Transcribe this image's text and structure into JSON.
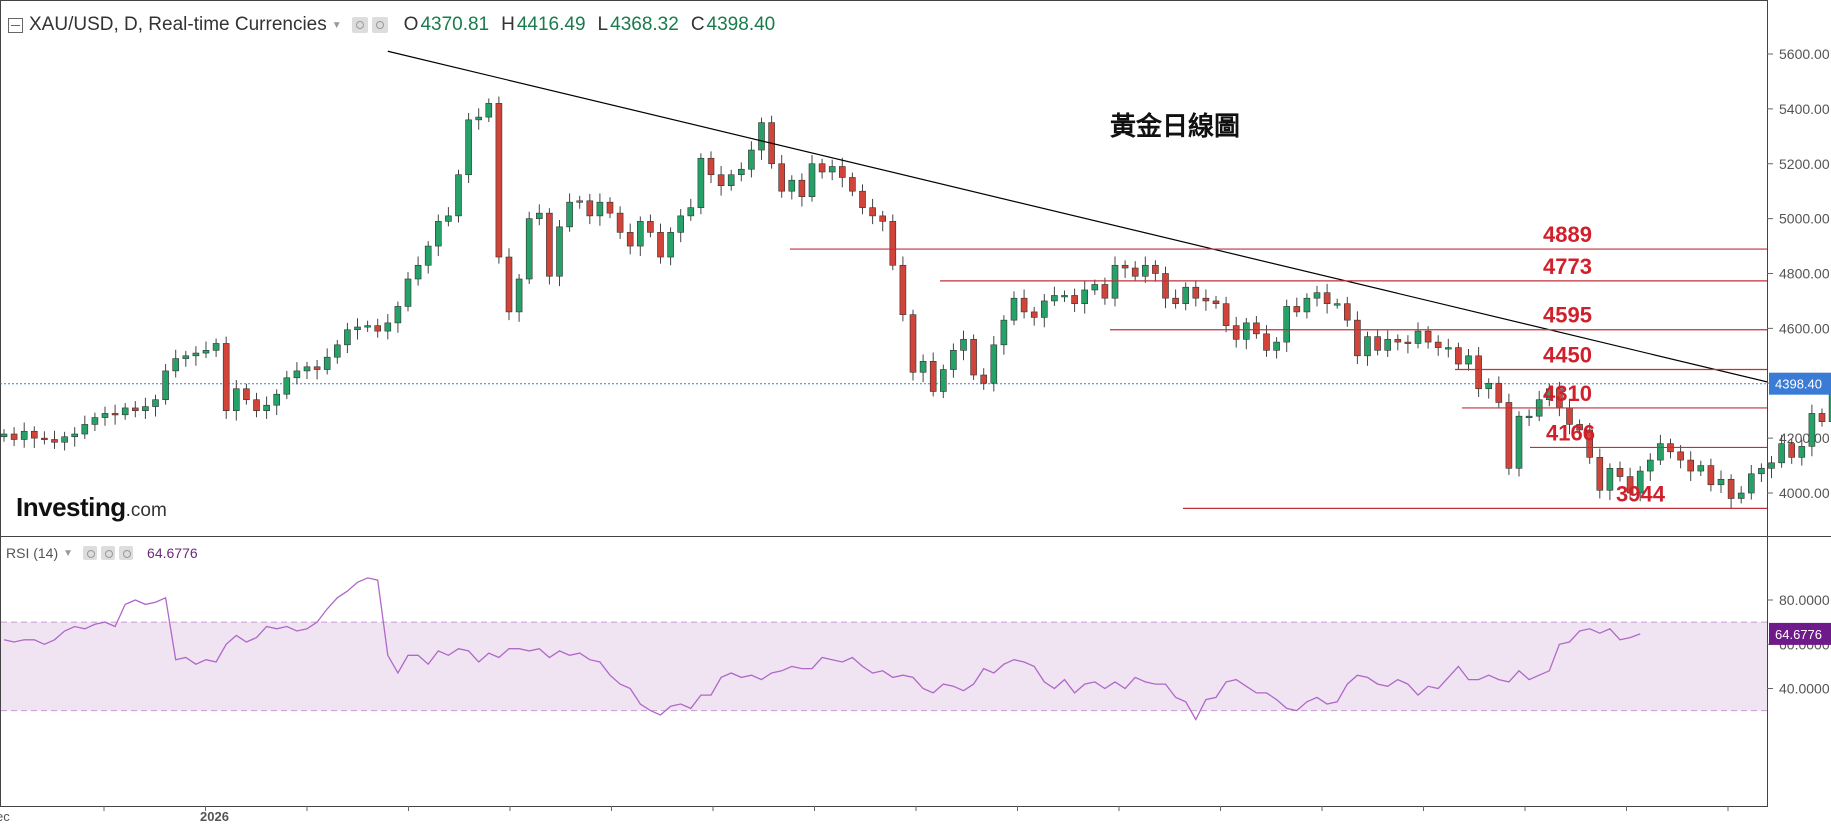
{
  "header": {
    "symbol": "XAU/USD, D, Real-time Currencies",
    "open_label": "O",
    "open": "4370.81",
    "high_label": "H",
    "high": "4416.49",
    "low_label": "L",
    "low": "4368.32",
    "close_label": "C",
    "close": "4398.40"
  },
  "logo": {
    "brand": "Investing",
    "suffix": ".com"
  },
  "chart_data": [
    {
      "type": "candlestick",
      "title": "黃金日線圖",
      "ylim": [
        3900,
        5650
      ],
      "y_ticks": [
        "4000.00",
        "4200.00",
        "4400.00",
        "4600.00",
        "4800.00",
        "5000.00",
        "5200.00",
        "5400.00",
        "5600.00"
      ],
      "x_labels": [
        "ec",
        "2026"
      ],
      "current_price": "4398.40",
      "colors": {
        "up": "#26a269",
        "down": "#d0443a",
        "level": "#c0303c",
        "level_text": "#d0202c",
        "price_tag": "#3a7bd5",
        "trendline": "#000000"
      },
      "levels": [
        {
          "value": 4889,
          "label": "4889"
        },
        {
          "value": 4773,
          "label": "4773"
        },
        {
          "value": 4595,
          "label": "4595"
        },
        {
          "value": 4450,
          "label": "4450"
        },
        {
          "value": 4310,
          "label": "4310"
        },
        {
          "value": 4166,
          "label": "4166"
        },
        {
          "value": 3944,
          "label": "3944"
        }
      ],
      "trendline": {
        "from": [
          38,
          5610
        ],
        "to": [
          176,
          4405
        ]
      },
      "closes": [
        4215,
        4195,
        4225,
        4200,
        4195,
        4185,
        4205,
        4215,
        4250,
        4275,
        4290,
        4285,
        4310,
        4300,
        4315,
        4340,
        4445,
        4490,
        4500,
        4510,
        4520,
        4545,
        4300,
        4380,
        4340,
        4300,
        4320,
        4360,
        4420,
        4445,
        4460,
        4450,
        4495,
        4540,
        4595,
        4605,
        4610,
        4590,
        4620,
        4680,
        4780,
        4830,
        4900,
        4990,
        5010,
        5160,
        5360,
        5370,
        5420,
        4860,
        4660,
        4780,
        5000,
        5020,
        4790,
        4970,
        5060,
        5065,
        5010,
        5060,
        5020,
        4950,
        4900,
        4990,
        4950,
        4860,
        4950,
        5010,
        5040,
        5220,
        5160,
        5120,
        5160,
        5180,
        5250,
        5350,
        5200,
        5100,
        5140,
        5080,
        5200,
        5170,
        5190,
        5150,
        5100,
        5040,
        5010,
        4990,
        4830,
        4650,
        4440,
        4480,
        4370,
        4450,
        4520,
        4560,
        4430,
        4400,
        4540,
        4630,
        4710,
        4660,
        4640,
        4700,
        4720,
        4720,
        4690,
        4740,
        4760,
        4710,
        4830,
        4820,
        4790,
        4830,
        4800,
        4710,
        4690,
        4750,
        4710,
        4700,
        4690,
        4610,
        4560,
        4620,
        4580,
        4520,
        4550,
        4680,
        4660,
        4710,
        4730,
        4690,
        4690,
        4630,
        4500,
        4570,
        4520,
        4560,
        4550,
        4545,
        4590,
        4550,
        4530,
        4530,
        4470,
        4500,
        4380,
        4400,
        4330,
        4090,
        4280,
        4280,
        4340,
        4380,
        4310,
        4250,
        4230,
        4130,
        4010,
        4090,
        4060,
        4000,
        4080,
        4120,
        4180,
        4150,
        4120,
        4080,
        4100,
        4030,
        4050,
        3980,
        4000,
        4070,
        4090,
        4110,
        4180,
        4130,
        4170,
        4290,
        4260,
        4380,
        4420,
        4440,
        4380,
        4360,
        4400,
        4398.4
      ],
      "rsi": {
        "label": "RSI (14)",
        "value": "64.6776",
        "ylim": [
          22,
          96
        ],
        "y_ticks": [
          "40.0000",
          "60.0000",
          "80.0000"
        ],
        "band": [
          30,
          70
        ],
        "colors": {
          "line": "#b068c8",
          "band": "#f0e4f3",
          "band_line": "#c79bd0",
          "tag": "#6e1a8a"
        },
        "values": [
          62,
          61,
          62,
          62,
          60,
          62,
          66,
          68,
          67,
          69,
          70,
          68,
          78,
          80,
          78,
          79,
          81,
          53,
          54,
          51,
          53,
          52,
          60,
          64,
          61,
          63,
          68,
          67,
          68,
          66,
          67,
          70,
          76,
          81,
          84,
          88,
          90,
          89,
          55,
          47,
          55,
          55,
          51,
          57,
          55,
          58,
          57,
          52,
          56,
          54,
          58,
          58,
          57,
          58,
          54,
          57,
          55,
          56,
          53,
          52,
          46,
          42,
          40,
          33,
          30,
          28,
          32,
          33,
          31,
          37,
          37,
          45,
          47,
          45,
          46,
          44,
          47,
          48,
          50,
          49,
          49,
          54,
          53,
          52,
          54,
          50,
          47,
          48,
          45,
          46,
          45,
          40,
          38,
          42,
          41,
          39,
          42,
          49,
          47,
          51,
          53,
          52,
          50,
          43,
          40,
          44,
          38,
          42,
          43,
          40,
          43,
          40,
          45,
          43,
          42,
          42,
          36,
          34,
          26,
          35,
          36,
          43,
          44,
          41,
          38,
          38,
          35,
          31,
          30,
          34,
          36,
          33,
          34,
          42,
          46,
          45,
          42,
          41,
          44,
          42,
          37,
          41,
          40,
          45,
          50,
          44,
          44,
          46,
          44,
          43,
          48,
          44,
          46,
          48,
          60,
          61,
          66,
          67,
          65,
          67,
          62,
          63,
          64.68
        ]
      }
    }
  ]
}
